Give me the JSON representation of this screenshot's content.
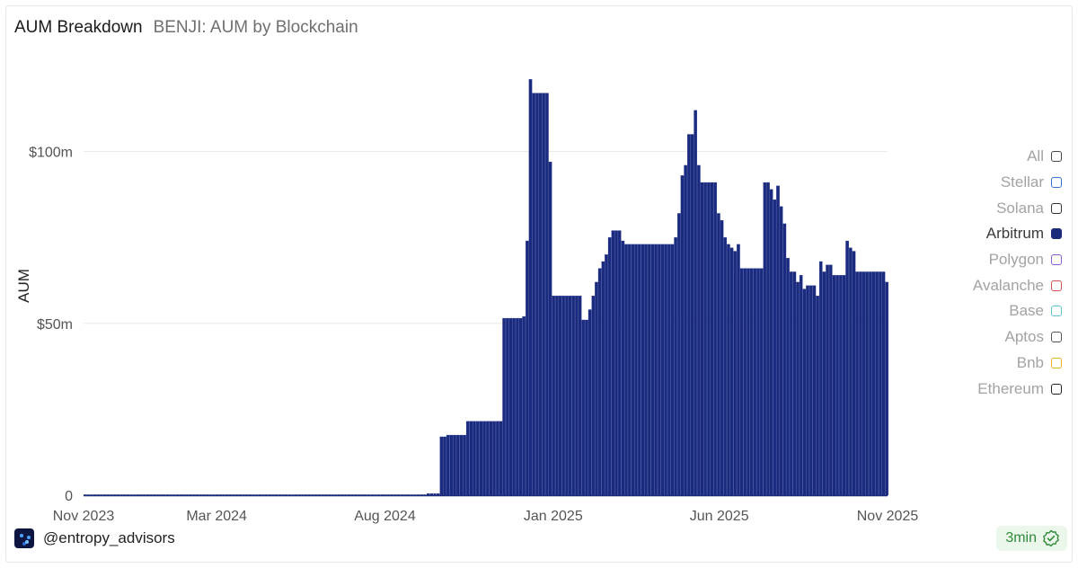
{
  "header": {
    "title": "AUM Breakdown",
    "subtitle": "BENJI: AUM by Blockchain"
  },
  "legend": [
    {
      "label": "All",
      "color": "#444444",
      "active": false
    },
    {
      "label": "Stellar",
      "color": "#3a6fd8",
      "active": false
    },
    {
      "label": "Solana",
      "color": "#333333",
      "active": false
    },
    {
      "label": "Arbitrum",
      "color": "#1a2a7c",
      "active": true
    },
    {
      "label": "Polygon",
      "color": "#8a5cd0",
      "active": false
    },
    {
      "label": "Avalanche",
      "color": "#d9534f",
      "active": false
    },
    {
      "label": "Base",
      "color": "#57c9c9",
      "active": false
    },
    {
      "label": "Aptos",
      "color": "#555555",
      "active": false
    },
    {
      "label": "Bnb",
      "color": "#e6b422",
      "active": false
    },
    {
      "label": "Ethereum",
      "color": "#222222",
      "active": false
    }
  ],
  "footer": {
    "handle": "@entropy_advisors",
    "badge": "3min"
  },
  "chart_data": {
    "type": "bar",
    "title": "BENJI: AUM by Blockchain",
    "ylabel": "AUM",
    "xlabel": "",
    "series_name": "Arbitrum",
    "bar_color": "#1a2a7c",
    "x_domain": [
      "2023-11-01",
      "2025-11-01"
    ],
    "ylim": [
      0,
      125
    ],
    "yticks": [
      {
        "value": 0,
        "label": "0"
      },
      {
        "value": 50,
        "label": "$50m"
      },
      {
        "value": 100,
        "label": "$100m"
      }
    ],
    "xticks": [
      {
        "date": "2023-11-01",
        "label": "Nov 2023"
      },
      {
        "date": "2024-03-01",
        "label": "Mar 2024"
      },
      {
        "date": "2024-08-01",
        "label": "Aug 2024"
      },
      {
        "date": "2025-01-01",
        "label": "Jan 2025"
      },
      {
        "date": "2025-06-01",
        "label": "Jun 2025"
      },
      {
        "date": "2025-11-01",
        "label": "Nov 2025"
      }
    ],
    "bar_width_days": 3,
    "points": [
      [
        "2023-11-01",
        0
      ],
      [
        "2024-09-08",
        0.5
      ],
      [
        "2024-09-20",
        17
      ],
      [
        "2024-09-24",
        17.5
      ],
      [
        "2024-10-08",
        17.5
      ],
      [
        "2024-10-12",
        21.5
      ],
      [
        "2024-11-03",
        21.5
      ],
      [
        "2024-11-15",
        51.5
      ],
      [
        "2024-12-03",
        52
      ],
      [
        "2024-12-06",
        74
      ],
      [
        "2024-12-09",
        123.5
      ],
      [
        "2024-12-10",
        121
      ],
      [
        "2024-12-12",
        117
      ],
      [
        "2024-12-24",
        117
      ],
      [
        "2024-12-27",
        97
      ],
      [
        "2024-12-30",
        58
      ],
      [
        "2025-01-24",
        58
      ],
      [
        "2025-01-27",
        51
      ],
      [
        "2025-02-01",
        54
      ],
      [
        "2025-02-03",
        58
      ],
      [
        "2025-02-06",
        62
      ],
      [
        "2025-02-09",
        66
      ],
      [
        "2025-02-12",
        68
      ],
      [
        "2025-02-15",
        70
      ],
      [
        "2025-02-19",
        75
      ],
      [
        "2025-02-21",
        77
      ],
      [
        "2025-02-27",
        77
      ],
      [
        "2025-03-02",
        74
      ],
      [
        "2025-03-06",
        73
      ],
      [
        "2025-04-18",
        73
      ],
      [
        "2025-04-21",
        75
      ],
      [
        "2025-04-24",
        82
      ],
      [
        "2025-04-27",
        93
      ],
      [
        "2025-04-30",
        96
      ],
      [
        "2025-05-03",
        105
      ],
      [
        "2025-05-06",
        105
      ],
      [
        "2025-05-08",
        112
      ],
      [
        "2025-05-10",
        96
      ],
      [
        "2025-05-13",
        91
      ],
      [
        "2025-05-26",
        91
      ],
      [
        "2025-05-29",
        82
      ],
      [
        "2025-06-02",
        80
      ],
      [
        "2025-06-05",
        75
      ],
      [
        "2025-06-08",
        73
      ],
      [
        "2025-06-11",
        72
      ],
      [
        "2025-06-14",
        71
      ],
      [
        "2025-06-17",
        73
      ],
      [
        "2025-06-20",
        66
      ],
      [
        "2025-07-08",
        66
      ],
      [
        "2025-07-11",
        91
      ],
      [
        "2025-07-14",
        91
      ],
      [
        "2025-07-17",
        89
      ],
      [
        "2025-07-20",
        86
      ],
      [
        "2025-07-23",
        90
      ],
      [
        "2025-07-26",
        84
      ],
      [
        "2025-07-29",
        79
      ],
      [
        "2025-08-01",
        69
      ],
      [
        "2025-08-04",
        65
      ],
      [
        "2025-08-10",
        62
      ],
      [
        "2025-08-13",
        64
      ],
      [
        "2025-08-16",
        60
      ],
      [
        "2025-08-19",
        61
      ],
      [
        "2025-08-22",
        61
      ],
      [
        "2025-08-28",
        58
      ],
      [
        "2025-08-31",
        68
      ],
      [
        "2025-09-03",
        65
      ],
      [
        "2025-09-06",
        67
      ],
      [
        "2025-09-12",
        64
      ],
      [
        "2025-09-18",
        64
      ],
      [
        "2025-09-24",
        74
      ],
      [
        "2025-09-27",
        72
      ],
      [
        "2025-09-30",
        71
      ],
      [
        "2025-10-03",
        65
      ],
      [
        "2025-10-27",
        65
      ],
      [
        "2025-10-30",
        62
      ],
      [
        "2025-11-01",
        62
      ]
    ]
  }
}
